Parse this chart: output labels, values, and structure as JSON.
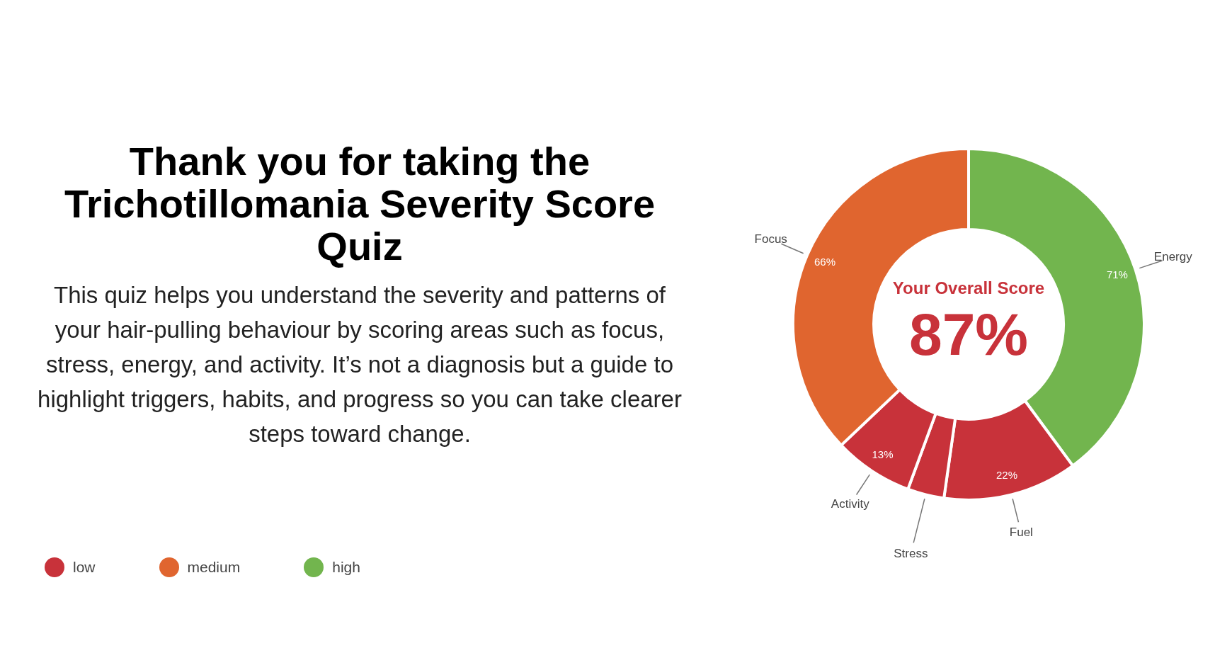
{
  "chart_data": {
    "type": "donut",
    "title": "Thank you for taking the Trichotillomania Severity Score Quiz",
    "subtitle": "This quiz helps you understand the severity and patterns of your hair-pulling behaviour by scoring areas such as focus, stress, energy, and activity. It’s not a diagnosis but a guide to highlight triggers, habits, and progress so you can take clearer steps toward change.",
    "categories": [
      "Energy",
      "Fuel",
      "Stress",
      "Activity",
      "Focus"
    ],
    "values": [
      71,
      22,
      6,
      13,
      66
    ],
    "value_labels": [
      "71%",
      "22%",
      null,
      "13%",
      "66%"
    ],
    "colors": [
      "#72b54e",
      "#c8323a",
      "#c8323a",
      "#c8323a",
      "#e0652f"
    ],
    "annotations": [
      "Your Overall Score",
      "87%",
      "low",
      "medium",
      "high"
    ]
  }
}
